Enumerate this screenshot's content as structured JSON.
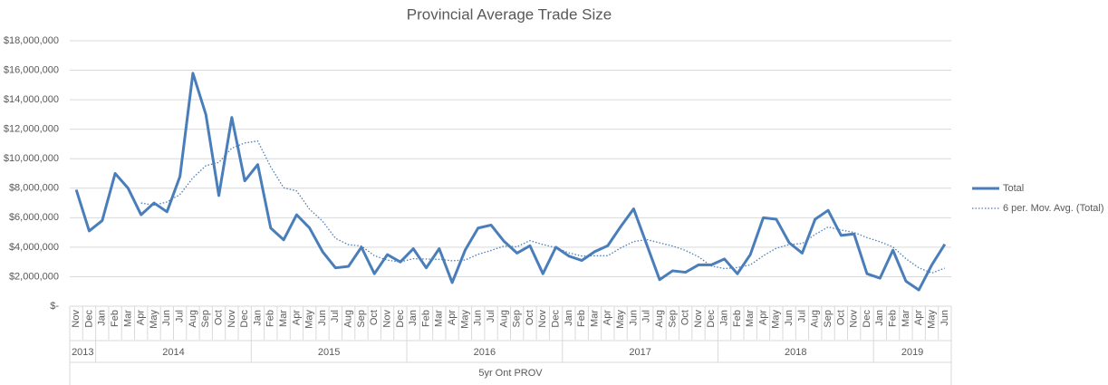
{
  "chart_data": {
    "type": "line",
    "title": "Provincial Average Trade Size",
    "x_group_label": "5yr Ont PROV",
    "category_groups": [
      {
        "label": "2013",
        "months": [
          "Nov",
          "Dec"
        ]
      },
      {
        "label": "2014",
        "months": [
          "Jan",
          "Feb",
          "Mar",
          "Apr",
          "May",
          "Jun",
          "Jul",
          "Aug",
          "Sep",
          "Oct",
          "Nov",
          "Dec"
        ]
      },
      {
        "label": "2015",
        "months": [
          "Jan",
          "Feb",
          "Mar",
          "Apr",
          "May",
          "Jun",
          "Jul",
          "Aug",
          "Sep",
          "Oct",
          "Nov",
          "Dec"
        ]
      },
      {
        "label": "2016",
        "months": [
          "Jan",
          "Feb",
          "Mar",
          "Apr",
          "May",
          "Jun",
          "Jul",
          "Aug",
          "Sep",
          "Oct",
          "Nov",
          "Dec"
        ]
      },
      {
        "label": "2017",
        "months": [
          "Jan",
          "Feb",
          "Mar",
          "Apr",
          "May",
          "Jun",
          "Jul",
          "Aug",
          "Sep",
          "Oct",
          "Nov",
          "Dec"
        ]
      },
      {
        "label": "2018",
        "months": [
          "Jan",
          "Feb",
          "Mar",
          "Apr",
          "May",
          "Jun",
          "Jul",
          "Aug",
          "Sep",
          "Oct",
          "Nov",
          "Dec"
        ]
      },
      {
        "label": "2019",
        "months": [
          "Jan",
          "Feb",
          "Mar",
          "Apr",
          "May",
          "Jun"
        ]
      }
    ],
    "series": [
      {
        "name": "Total",
        "color": "#4a7ebb",
        "style": "solid",
        "values": [
          7900000,
          5100000,
          5800000,
          9000000,
          8000000,
          6200000,
          7000000,
          6400000,
          8800000,
          15800000,
          13000000,
          7500000,
          12800000,
          8500000,
          9600000,
          5300000,
          4500000,
          6200000,
          5300000,
          3700000,
          2600000,
          2700000,
          4000000,
          2200000,
          3500000,
          3000000,
          3900000,
          2600000,
          3900000,
          1600000,
          3800000,
          5300000,
          5500000,
          4400000,
          3600000,
          4100000,
          2200000,
          4000000,
          3400000,
          3100000,
          3700000,
          4100000,
          5400000,
          6600000,
          4200000,
          1800000,
          2400000,
          2300000,
          2800000,
          2800000,
          3200000,
          2200000,
          3500000,
          6000000,
          5900000,
          4300000,
          3600000,
          5900000,
          6500000,
          4800000,
          4900000,
          2200000,
          1900000,
          3800000,
          1700000,
          1100000,
          2800000,
          4200000
        ]
      },
      {
        "name": "6 per. Mov. Avg. (Total)",
        "color": "#4a7ebb",
        "style": "dotted",
        "values": [
          null,
          null,
          null,
          null,
          null,
          7000000,
          6850000,
          7070000,
          7570000,
          8700000,
          9530000,
          9750000,
          10720000,
          11070000,
          11200000,
          9450000,
          8030000,
          7820000,
          6570000,
          5770000,
          4600000,
          4170000,
          4080000,
          3420000,
          3120000,
          3000000,
          3220000,
          3200000,
          3180000,
          3080000,
          3130000,
          3520000,
          3780000,
          4080000,
          4030000,
          4450000,
          4180000,
          3970000,
          3620000,
          3400000,
          3420000,
          3420000,
          3950000,
          4380000,
          4520000,
          4300000,
          4080000,
          3780000,
          3350000,
          2720000,
          2550000,
          2620000,
          2800000,
          3420000,
          3930000,
          4180000,
          4250000,
          4870000,
          5370000,
          5170000,
          5000000,
          4650000,
          4370000,
          4020000,
          3220000,
          2600000,
          2250000,
          2580000
        ]
      }
    ],
    "ylim": [
      0,
      18000000
    ],
    "yticks": [
      {
        "value": 0,
        "label": "$-"
      },
      {
        "value": 2000000,
        "label": "$2,000,000"
      },
      {
        "value": 4000000,
        "label": "$4,000,000"
      },
      {
        "value": 6000000,
        "label": "$6,000,000"
      },
      {
        "value": 8000000,
        "label": "$8,000,000"
      },
      {
        "value": 10000000,
        "label": "$10,000,000"
      },
      {
        "value": 12000000,
        "label": "$12,000,000"
      },
      {
        "value": 14000000,
        "label": "$14,000,000"
      },
      {
        "value": 16000000,
        "label": "$16,000,000"
      },
      {
        "value": 18000000,
        "label": "$18,000,000"
      }
    ],
    "grid": true,
    "legend": "right"
  }
}
